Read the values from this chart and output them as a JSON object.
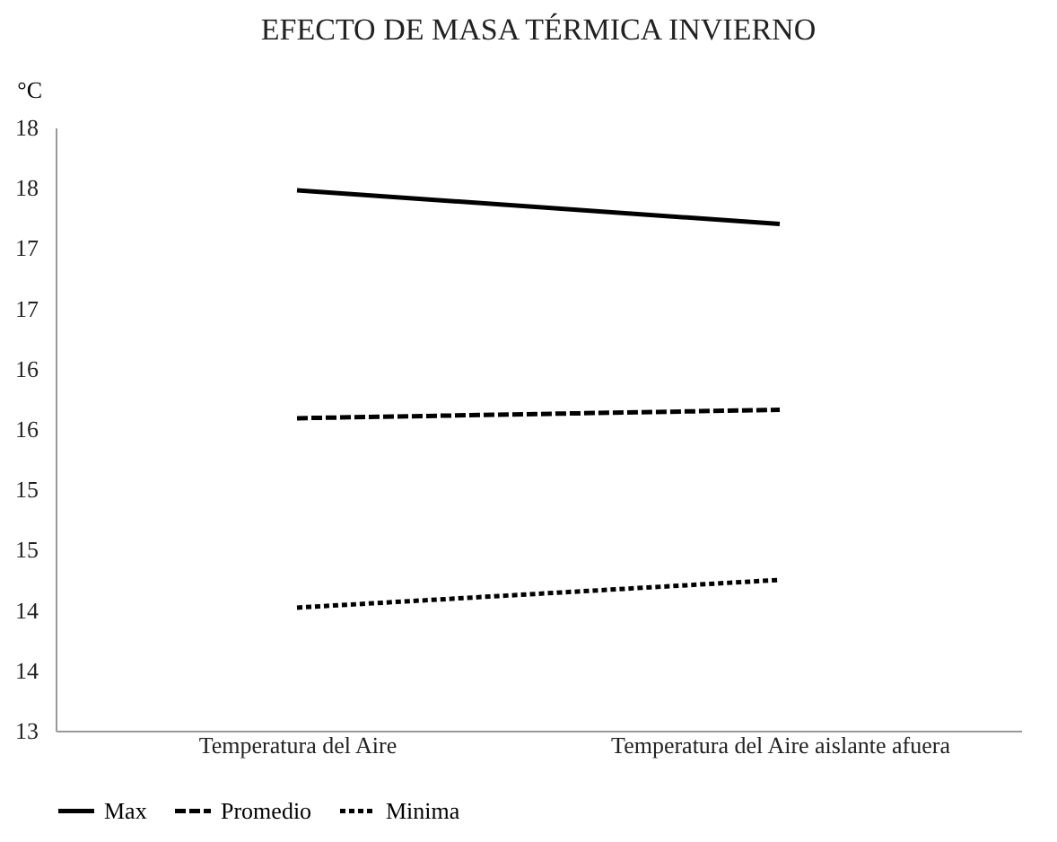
{
  "chart_data": {
    "type": "line",
    "title": "EFECTO DE MASA TÉRMICA INVIERNO",
    "ylabel": "°C",
    "categories": [
      "Temperatura del Aire",
      "Temperatura del Aire aislante afuera"
    ],
    "series": [
      {
        "name": "Max",
        "color": "#000000",
        "line_style": "solid",
        "values": [
          17.48,
          17.2
        ]
      },
      {
        "name": "Promedio",
        "color": "#000000",
        "line_style": "dashed",
        "values": [
          15.59,
          15.66
        ]
      },
      {
        "name": "Minima",
        "color": "#000000",
        "line_style": "dotted",
        "values": [
          14.02,
          14.25
        ]
      }
    ],
    "ylim": [
      13,
      18
    ],
    "yticks": [
      13,
      {
        "value": 13.5,
        "label": "14"
      },
      14,
      {
        "value": 14.5,
        "label": "15"
      },
      15,
      {
        "value": 15.5,
        "label": "16"
      },
      16,
      {
        "value": 16.5,
        "label": "17"
      },
      17,
      {
        "value": 17.5,
        "label": "18"
      },
      18
    ],
    "grid": false,
    "legend": "bottom",
    "marker": "none"
  }
}
